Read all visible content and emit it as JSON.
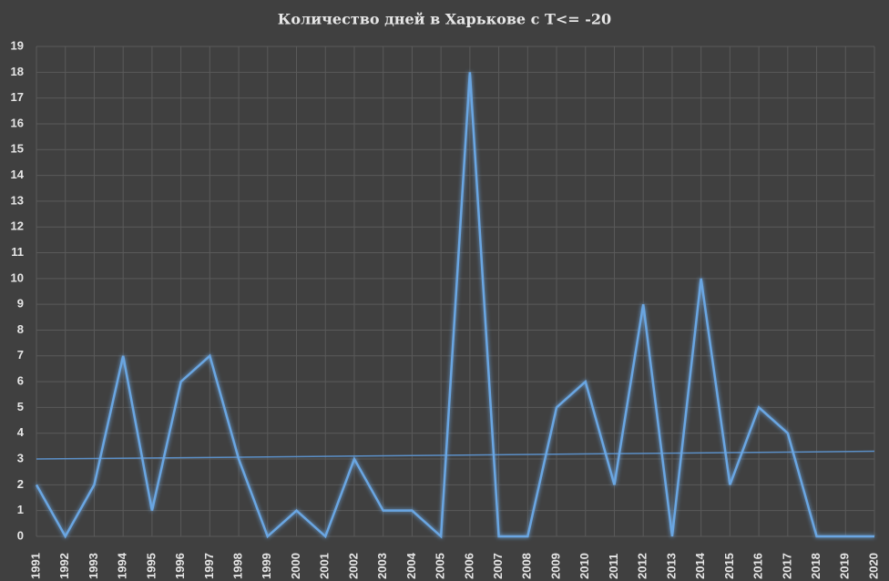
{
  "chart_data": {
    "type": "line",
    "title": "Количество дней в Харькове с T<= -20",
    "categories": [
      "1991",
      "1992",
      "1993",
      "1994",
      "1995",
      "1996",
      "1997",
      "1998",
      "1999",
      "2000",
      "2001",
      "2002",
      "2003",
      "2004",
      "2005",
      "2006",
      "2007",
      "2008",
      "2009",
      "2010",
      "2011",
      "2012",
      "2013",
      "2014",
      "2015",
      "2016",
      "2017",
      "2018",
      "2019",
      "2020"
    ],
    "series": [
      {
        "color": "#6aa6e2",
        "values": [
          2,
          0,
          2,
          7,
          1,
          6,
          7,
          3,
          0,
          1,
          0,
          3,
          1,
          1,
          0,
          18,
          0,
          0,
          5,
          6,
          2,
          9,
          0,
          10,
          2,
          5,
          4,
          0,
          0,
          0
        ]
      }
    ],
    "trendline": {
      "color": "#5b8fc7",
      "values": [
        3.0,
        3.3
      ]
    },
    "ylim": [
      0,
      19
    ],
    "yticks": [
      0,
      1,
      2,
      3,
      4,
      5,
      6,
      7,
      8,
      9,
      10,
      11,
      12,
      13,
      14,
      15,
      16,
      17,
      18,
      19
    ],
    "grid": true
  }
}
